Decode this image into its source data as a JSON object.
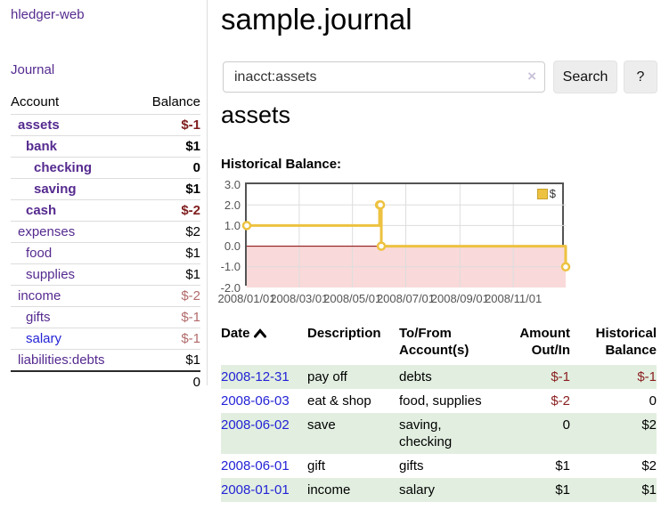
{
  "colors": {
    "purple": "#552a8f",
    "blue": "#2323d6",
    "neg-dark": "#7f1d1d",
    "neg-light": "#b26b6b",
    "neg-table": "#8b2020",
    "stripe": "#e2efe0",
    "gold": "#edc240"
  },
  "sidebar": {
    "app_title": "hledger-web",
    "journal_link": "Journal",
    "accounts_table": {
      "account_header": "Account",
      "balance_header": "Balance",
      "rows": [
        {
          "name": "assets",
          "balance": "$-1",
          "indent": 1,
          "bold": true,
          "negative": true,
          "link_color": "purple"
        },
        {
          "name": "bank",
          "balance": "$1",
          "indent": 2,
          "bold": true,
          "negative": false,
          "link_color": "purple"
        },
        {
          "name": "checking",
          "balance": "0",
          "indent": 3,
          "bold": true,
          "negative": false,
          "link_color": "purple"
        },
        {
          "name": "saving",
          "balance": "$1",
          "indent": 3,
          "bold": true,
          "negative": false,
          "link_color": "purple"
        },
        {
          "name": "cash",
          "balance": "$-2",
          "indent": 2,
          "bold": true,
          "negative": true,
          "link_color": "purple"
        },
        {
          "name": "expenses",
          "balance": "$2",
          "indent": 1,
          "bold": false,
          "negative": false,
          "link_color": "purple"
        },
        {
          "name": "food",
          "balance": "$1",
          "indent": 2,
          "bold": false,
          "negative": false,
          "link_color": "purple"
        },
        {
          "name": "supplies",
          "balance": "$1",
          "indent": 2,
          "bold": false,
          "negative": false,
          "link_color": "purple"
        },
        {
          "name": "income",
          "balance": "$-2",
          "indent": 1,
          "bold": false,
          "negative": true,
          "link_color": "purple"
        },
        {
          "name": "gifts",
          "balance": "$-1",
          "indent": 2,
          "bold": false,
          "negative": true,
          "link_color": "purple"
        },
        {
          "name": "salary",
          "balance": "$-1",
          "indent": 2,
          "bold": false,
          "negative": true,
          "link_color": "blue"
        },
        {
          "name": "liabilities:debts",
          "balance": "$1",
          "indent": 1,
          "bold": false,
          "negative": false,
          "link_color": "purple"
        }
      ],
      "total": "0"
    }
  },
  "header": {
    "title": "sample.journal"
  },
  "search": {
    "query": "inacct:assets",
    "clear_icon": "×",
    "button_label": "Search",
    "help_label": "?"
  },
  "account_page": {
    "title": "assets"
  },
  "chart_data": {
    "type": "line",
    "step": true,
    "title": "Historical Balance:",
    "series": [
      {
        "name": "$",
        "color": "#edc240",
        "points": [
          [
            "2008-01-01",
            1
          ],
          [
            "2008-06-01",
            2
          ],
          [
            "2008-06-02",
            2
          ],
          [
            "2008-06-03",
            0
          ],
          [
            "2008-12-31",
            -1
          ]
        ]
      }
    ],
    "x_ticks": [
      "2008/01/01",
      "2008/03/01",
      "2008/05/01",
      "2008/07/01",
      "2008/09/01",
      "2008/11/01"
    ],
    "y_ticks": [
      3.0,
      2.0,
      1.0,
      0.0,
      -1.0,
      -2.0
    ],
    "ylim": [
      -2.0,
      3.0
    ],
    "x_range": [
      "2008-01-01",
      "2008-12-31"
    ],
    "legend_position": "top-right",
    "grid": true,
    "grid_color": "#dddddd",
    "border_color": "#545454",
    "zero_line_color": "#8b0000",
    "negative_region_color": "#f9d9d9",
    "point_fill": "#ffffff"
  },
  "register": {
    "columns": {
      "date": "Date",
      "description": "Description",
      "accounts": "To/From Account(s)",
      "amount": "Amount Out/In",
      "balance": "Historical Balance"
    },
    "sort": {
      "column": "date",
      "direction": "ascending"
    },
    "rows": [
      {
        "date": "2008-12-31",
        "description": "pay off",
        "accounts": "debts",
        "amount": "$-1",
        "amount_negative": true,
        "balance": "$-1",
        "balance_negative": true
      },
      {
        "date": "2008-06-03",
        "description": "eat & shop",
        "accounts": "food, supplies",
        "amount": "$-2",
        "amount_negative": true,
        "balance": "0",
        "balance_negative": false
      },
      {
        "date": "2008-06-02",
        "description": "save",
        "accounts": "saving, checking",
        "amount": "0",
        "amount_negative": false,
        "balance": "$2",
        "balance_negative": false
      },
      {
        "date": "2008-06-01",
        "description": "gift",
        "accounts": "gifts",
        "amount": "$1",
        "amount_negative": false,
        "balance": "$2",
        "balance_negative": false
      },
      {
        "date": "2008-01-01",
        "description": "income",
        "accounts": "salary",
        "amount": "$1",
        "amount_negative": false,
        "balance": "$1",
        "balance_negative": false
      }
    ]
  }
}
